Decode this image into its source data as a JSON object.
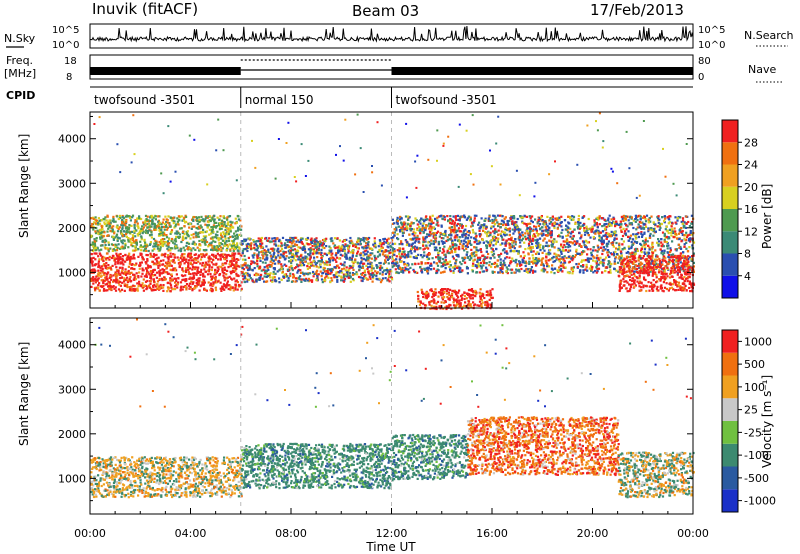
{
  "header": {
    "station": "Inuvik (fitACF)",
    "beam": "Beam 03",
    "date": "17/Feb/2013"
  },
  "strips": {
    "nsky_label": "N.Sky",
    "nsky_ticks": [
      "10^5",
      "10^0"
    ],
    "nsearch_label": "N.Search",
    "freq_label_1": "Freq.",
    "freq_label_2": "[MHz]",
    "freq_ticks": [
      "18",
      "8"
    ],
    "nave_label": "Nave",
    "nave_ticks": [
      "80",
      "0"
    ],
    "cpid_label": "CPID",
    "cpid_segments": [
      {
        "name": "twofsound -3501",
        "start_hour": 0,
        "end_hour": 6
      },
      {
        "name": "normal 150",
        "start_hour": 6,
        "end_hour": 12
      },
      {
        "name": "twofsound -3501",
        "start_hour": 12,
        "end_hour": 24
      }
    ]
  },
  "chart_data": [
    {
      "type": "heatmap",
      "name": "power",
      "ylabel": "Slant Range [km]",
      "xlabel": "",
      "xlim": [
        0,
        24
      ],
      "ylim": [
        200,
        4600
      ],
      "yticks": [
        1000,
        2000,
        3000,
        4000
      ],
      "colorbar": {
        "label": "Power [dB]",
        "tick_labels": [
          "4",
          "8",
          "12",
          "16",
          "20",
          "24",
          "28"
        ],
        "colors": [
          "#1010e8",
          "#2a4fb0",
          "#3b8a76",
          "#4f9a50",
          "#d8d020",
          "#f0a020",
          "#f07010",
          "#f02020"
        ]
      },
      "regions": [
        {
          "t0": 0,
          "t1": 6,
          "r0": 600,
          "r1": 1450,
          "class": "strong"
        },
        {
          "t0": 0,
          "t1": 6,
          "r0": 1500,
          "r1": 2300,
          "class": "medium"
        },
        {
          "t0": 6,
          "t1": 12,
          "r0": 800,
          "r1": 1800,
          "class": "mixed"
        },
        {
          "t0": 12,
          "t1": 24,
          "r0": 1000,
          "r1": 2300,
          "class": "mixed"
        },
        {
          "t0": 21,
          "t1": 24,
          "r0": 600,
          "r1": 1400,
          "class": "strong"
        },
        {
          "t0": 13,
          "t1": 16,
          "r0": 200,
          "r1": 650,
          "class": "strong"
        }
      ]
    },
    {
      "type": "heatmap",
      "name": "velocity",
      "ylabel": "Slant Range [km]",
      "xlabel": "Time UT",
      "xlim": [
        0,
        24
      ],
      "ylim": [
        200,
        4600
      ],
      "xticks": [
        "00:00",
        "04:00",
        "08:00",
        "12:00",
        "16:00",
        "20:00",
        "00:00"
      ],
      "yticks": [
        1000,
        2000,
        3000,
        4000
      ],
      "colorbar": {
        "label": "Velocity [m s⁻¹]",
        "tick_labels": [
          "1000",
          "500",
          "100",
          "25",
          "-25",
          "-100",
          "-500",
          "-1000"
        ],
        "colors": [
          "#1a30c8",
          "#2a5aa0",
          "#3c8a70",
          "#70c040",
          "#c8c8c8",
          "#f0a020",
          "#f07010",
          "#f02020"
        ]
      },
      "regions": [
        {
          "t0": 0,
          "t1": 6,
          "r0": 600,
          "r1": 1500,
          "class": "orange-green"
        },
        {
          "t0": 6,
          "t1": 12,
          "r0": 800,
          "r1": 1800,
          "class": "green"
        },
        {
          "t0": 12,
          "t1": 15,
          "r0": 1000,
          "r1": 2000,
          "class": "green"
        },
        {
          "t0": 15,
          "t1": 21,
          "r0": 1100,
          "r1": 2400,
          "class": "red-orange"
        },
        {
          "t0": 21,
          "t1": 24,
          "r0": 600,
          "r1": 1600,
          "class": "green-orange"
        }
      ]
    }
  ]
}
